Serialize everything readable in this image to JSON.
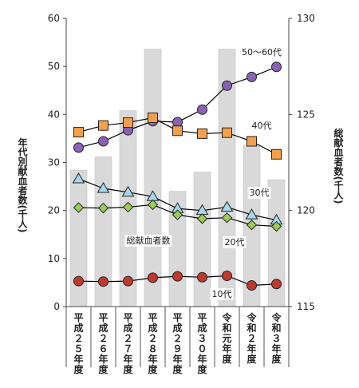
{
  "chart_data": {
    "type": "bar",
    "categories": [
      "平成25年度",
      "平成26年度",
      "平成27年度",
      "平成28年度",
      "平成29年度",
      "平成30年度",
      "令和元年度",
      "令和2年度",
      "令和3年度"
    ],
    "category_labels": [
      "平成２５年度",
      "平成２６年度",
      "平成２７年度",
      "平成２８年度",
      "平成２９年度",
      "平成３０年度",
      "令和元年度",
      "令和２年度",
      "令和３年度"
    ],
    "ylabel": "年代別献血者数(千人)",
    "y2label": "総献血者数(千人)",
    "ylim": [
      0,
      60
    ],
    "y2lim": [
      115,
      130
    ],
    "yticks": [
      "0",
      "10",
      "20",
      "30",
      "40",
      "50",
      "60"
    ],
    "y2ticks": [
      "115",
      "120",
      "125",
      "130"
    ],
    "bar_series": {
      "name": "総献血者数",
      "axis": "right",
      "color": "#d9d9d9",
      "values": [
        122.1,
        122.8,
        125.2,
        128.4,
        121.0,
        122.0,
        128.4,
        123.4,
        121.6
      ]
    },
    "series": [
      {
        "name": "50～60代",
        "color": "#8a62b4",
        "marker": "circle",
        "values": [
          33.1,
          34.4,
          36.7,
          38.6,
          38.4,
          41.0,
          46.0,
          47.8,
          49.9
        ]
      },
      {
        "name": "40代",
        "color": "#f5a04a",
        "marker": "square",
        "values": [
          36.3,
          37.7,
          38.3,
          39.3,
          36.6,
          36.0,
          36.2,
          34.4,
          31.7
        ]
      },
      {
        "name": "30代",
        "color": "#a8d8f0",
        "marker": "triangle",
        "values": [
          26.6,
          24.6,
          23.8,
          22.9,
          20.4,
          20.0,
          20.7,
          19.1,
          18.0
        ]
      },
      {
        "name": "20代",
        "color": "#9acd50",
        "marker": "diamond",
        "values": [
          20.6,
          20.5,
          20.7,
          21.2,
          19.1,
          18.3,
          18.5,
          17.0,
          16.7
        ]
      },
      {
        "name": "10代",
        "color": "#c0392b",
        "marker": "circle",
        "values": [
          5.3,
          5.2,
          5.3,
          6.0,
          6.3,
          6.1,
          6.4,
          4.4,
          4.7
        ]
      }
    ],
    "annotations": [
      {
        "text": "50～60代",
        "series": "50～60代"
      },
      {
        "text": "40代",
        "series": "40代"
      },
      {
        "text": "30代",
        "series": "30代"
      },
      {
        "text": "20代",
        "series": "20代"
      },
      {
        "text": "総献血者数",
        "series": "総献血者数"
      },
      {
        "text": "10代",
        "series": "10代"
      }
    ],
    "legend": "none",
    "grid": false
  }
}
